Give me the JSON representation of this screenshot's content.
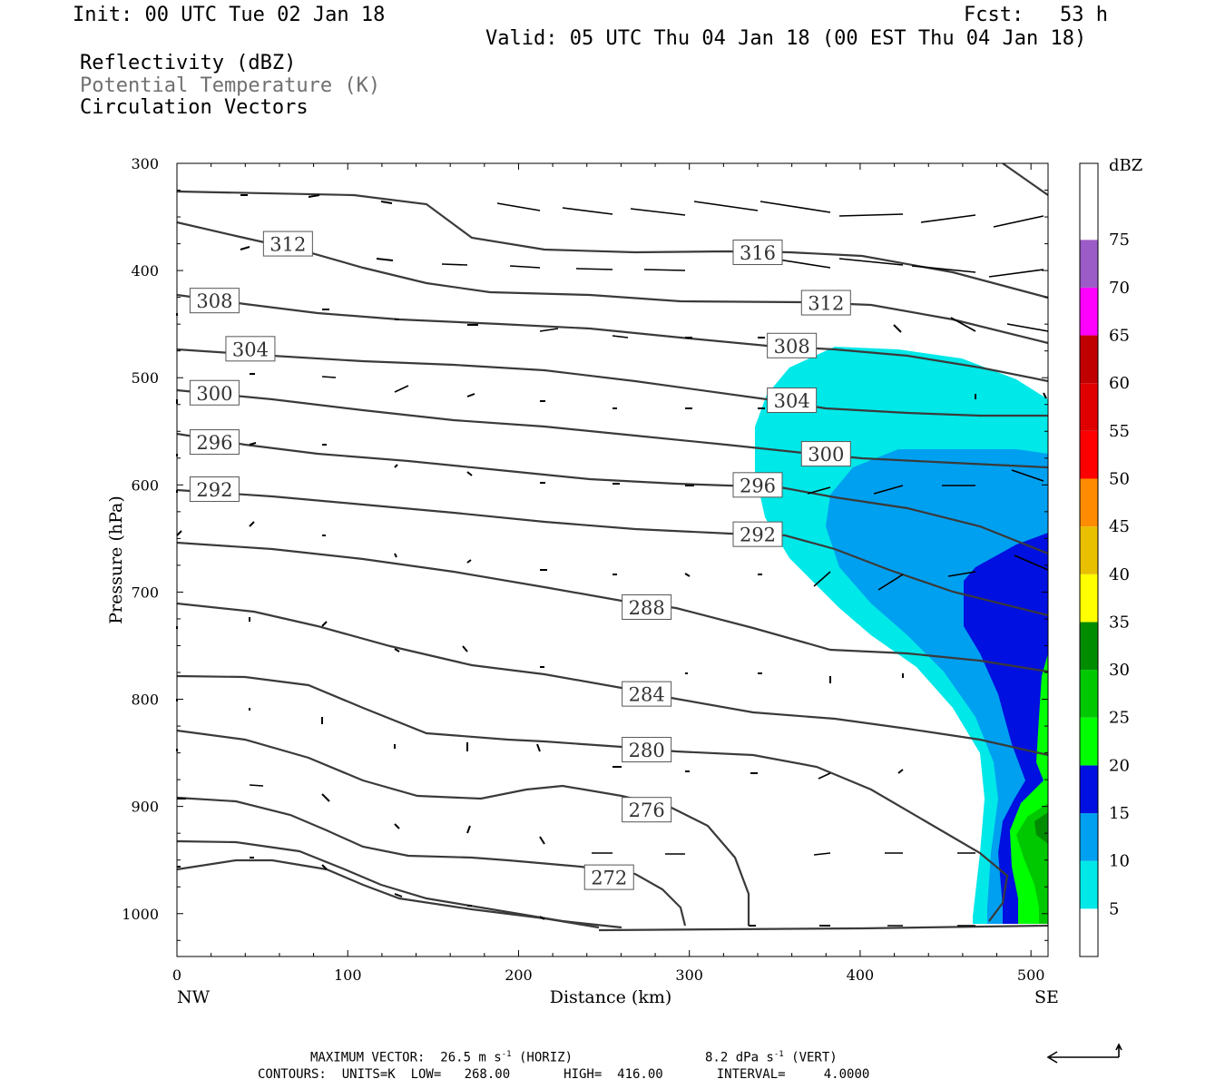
{
  "header": {
    "init": "Init: 00 UTC Tue 02 Jan 18",
    "fcst": "Fcst:   53 h",
    "valid": "Valid: 05 UTC Thu 04 Jan 18 (00 EST Thu 04 Jan 18)",
    "field1": "Reflectivity (dBZ)",
    "field2": "Potential Temperature (K)",
    "field3": "Circulation Vectors"
  },
  "footer": {
    "max_vector": "MAXIMUM VECTOR:  26.5 m s",
    "max_vector_unit": "-1",
    "horiz": "(HORIZ)",
    "vert_val": "8.2 dPa s",
    "vert_unit": "-1",
    "vert": "(VERT)",
    "contours": "CONTOURS:  UNITS=K  LOW=   268.00       HIGH=  416.00       INTERVAL=     4.0000"
  },
  "colors": {
    "cyan": "#00e8e8",
    "lightblue": "#00a0f0",
    "blue": "#0010e0",
    "green": "#00ff00",
    "midgreen": "#00c800",
    "darkgreen": "#008c00",
    "contour": "#3a3a3a"
  },
  "chart_data": {
    "type": "contour",
    "title": "Reflectivity (dBZ) / Potential Temperature (K) / Circulation Vectors",
    "xlabel": "Distance (km)",
    "ylabel": "Pressure (hPa)",
    "x_ticks": [
      "0",
      "100",
      "200",
      "300",
      "400",
      "500"
    ],
    "x_end_labels": [
      "NW",
      "SE"
    ],
    "xlim": [
      0,
      510
    ],
    "y_ticks": [
      "300",
      "400",
      "500",
      "600",
      "700",
      "800",
      "900",
      "1000"
    ],
    "ylim": [
      300,
      1040
    ],
    "colorbar": {
      "unit": "dBZ",
      "levels": [
        "5",
        "10",
        "15",
        "20",
        "25",
        "30",
        "35",
        "40",
        "45",
        "50",
        "55",
        "60",
        "65",
        "70",
        "75"
      ],
      "colors": [
        "#00e8e8",
        "#00a0f0",
        "#0010e0",
        "#00ff00",
        "#00c800",
        "#008c00",
        "#ffff00",
        "#e8c000",
        "#ff8c00",
        "#ff0000",
        "#e00000",
        "#c00000",
        "#ff00ff",
        "#9c5cc8",
        "#ffffff"
      ]
    },
    "contour_labels": [
      {
        "text": "316",
        "x": 340,
        "p": 383
      },
      {
        "text": "312",
        "x": 65,
        "p": 375
      },
      {
        "text": "312",
        "x": 380,
        "p": 430
      },
      {
        "text": "308",
        "x": 22,
        "p": 428
      },
      {
        "text": "308",
        "x": 360,
        "p": 470
      },
      {
        "text": "304",
        "x": 43,
        "p": 473
      },
      {
        "text": "304",
        "x": 360,
        "p": 521
      },
      {
        "text": "300",
        "x": 22,
        "p": 514
      },
      {
        "text": "300",
        "x": 380,
        "p": 571
      },
      {
        "text": "296",
        "x": 22,
        "p": 560
      },
      {
        "text": "296",
        "x": 340,
        "p": 600
      },
      {
        "text": "292",
        "x": 22,
        "p": 604
      },
      {
        "text": "292",
        "x": 340,
        "p": 646
      },
      {
        "text": "288",
        "x": 275,
        "p": 714
      },
      {
        "text": "284",
        "x": 275,
        "p": 795
      },
      {
        "text": "280",
        "x": 275,
        "p": 847
      },
      {
        "text": "276",
        "x": 275,
        "p": 903
      },
      {
        "text": "272",
        "x": 253,
        "p": 966
      }
    ]
  }
}
